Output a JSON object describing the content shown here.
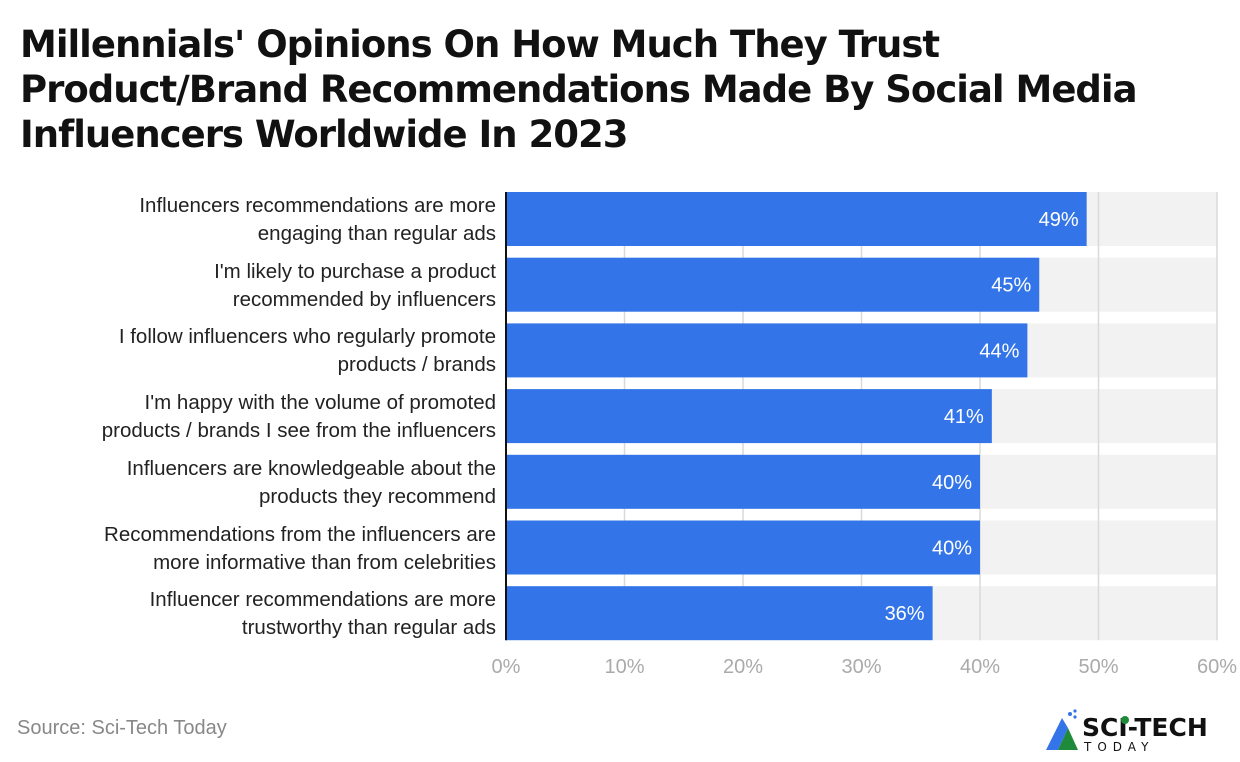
{
  "chart_data": {
    "type": "bar",
    "orientation": "horizontal",
    "title": "Millennials' Opinions On How Much They Trust Product/Brand Recommendations Made By Social Media Influencers Worldwide In 2023",
    "categories": [
      "Influencers recommendations are more engaging than regular ads",
      "I'm likely to purchase a product recommended by influencers",
      "I follow influencers who regularly promote products / brands",
      "I'm happy with the volume of promoted products / brands I see from the influencers",
      "Influencers are knowledgeable about the products they recommend",
      "Recommendations from the influencers are more informative than from celebrities",
      "Influencer recommendations are more trustworthy than regular ads"
    ],
    "category_lines": [
      [
        "Influencers recommendations are more",
        "engaging than regular ads"
      ],
      [
        "I'm likely to purchase a product",
        "recommended by influencers"
      ],
      [
        "I follow influencers who regularly promote",
        "products / brands"
      ],
      [
        "I'm happy with the volume of promoted",
        "products / brands I see from the influencers"
      ],
      [
        "Influencers are knowledgeable about the",
        "products they recommend"
      ],
      [
        "Recommendations from the influencers are",
        "more informative than from celebrities"
      ],
      [
        "Influencer recommendations are more",
        "trustworthy than regular ads"
      ]
    ],
    "values": [
      49,
      45,
      44,
      41,
      40,
      40,
      36
    ],
    "data_labels": [
      "49%",
      "45%",
      "44%",
      "41%",
      "40%",
      "40%",
      "36%"
    ],
    "xlim": [
      0,
      60
    ],
    "x_ticks": [
      "0%",
      "10%",
      "20%",
      "30%",
      "40%",
      "50%",
      "60%"
    ],
    "xlabel": "",
    "ylabel": "",
    "grid": true,
    "bar_color": "#3375e8",
    "track_color": "#f2f2f2"
  },
  "source": "Source: Sci-Tech Today",
  "logo": {
    "text": "SCI-TECH",
    "subtext": "TODAY"
  }
}
